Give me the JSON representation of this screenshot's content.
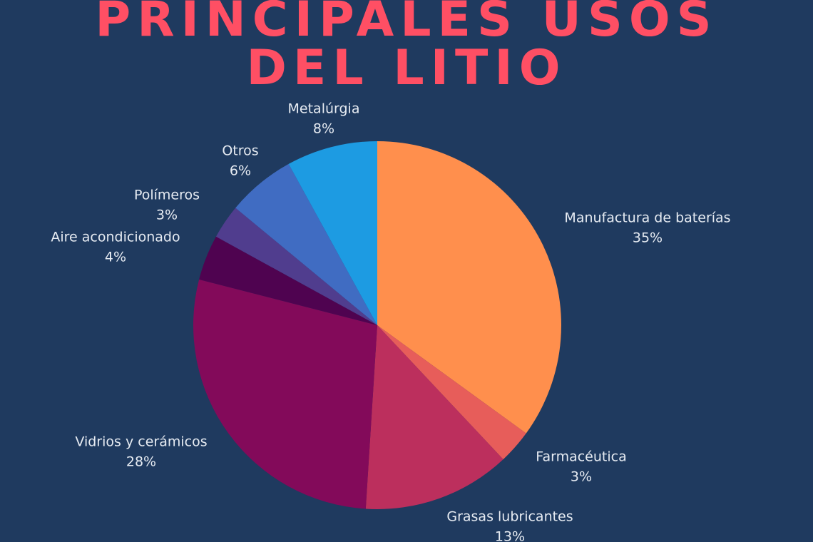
{
  "title": {
    "line1": "PRINCIPALES USOS",
    "line2": "DEL LITIO"
  },
  "chart_data": {
    "type": "pie",
    "title": "PRINCIPALES USOS DEL LITIO",
    "start_angle_deg": 0,
    "direction": "clockwise",
    "slices": [
      {
        "label": "Manufactura de baterías",
        "value": 35,
        "display": "35%",
        "color": "#ff8f4d"
      },
      {
        "label": "Farmacéutica",
        "value": 3,
        "display": "3%",
        "color": "#e75d5a"
      },
      {
        "label": "Grasas lubricantes",
        "value": 13,
        "display": "13%",
        "color": "#bc2f5d"
      },
      {
        "label": "Vidrios y cerámicos",
        "value": 28,
        "display": "28%",
        "color": "#830a5a"
      },
      {
        "label": "Aire acondicionado",
        "value": 4,
        "display": "4%",
        "color": "#4f0350"
      },
      {
        "label": "Polímeros",
        "value": 3,
        "display": "3%",
        "color": "#503d8e"
      },
      {
        "label": "Otros",
        "value": 6,
        "display": "6%",
        "color": "#406cc2"
      },
      {
        "label": "Metalúrgia",
        "value": 8,
        "display": "8%",
        "color": "#1d9be2"
      }
    ]
  }
}
